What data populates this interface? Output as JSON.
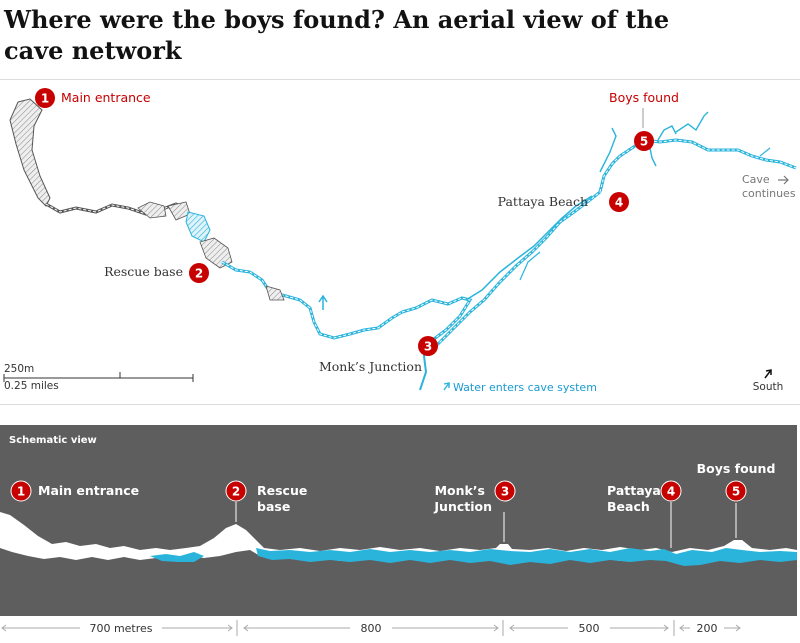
{
  "headline": "Where were the boys found? An aerial view of the cave network",
  "colors": {
    "marker_red": "#c70000",
    "water_blue": "#2ab4dc",
    "cave_grey": "#5e5e5e",
    "panel_dark": "#5e5e5e"
  },
  "aerial": {
    "locations": [
      {
        "num": "1",
        "label": "Main entrance"
      },
      {
        "num": "2",
        "label": "Rescue base"
      },
      {
        "num": "3",
        "label": "Monk’s Junction"
      },
      {
        "num": "4",
        "label": "Pattaya Beach"
      },
      {
        "num": "5",
        "label": "Boys found"
      }
    ],
    "cave_continues": [
      "Cave",
      "continues"
    ],
    "water_enters": "Water enters cave system",
    "scale": {
      "metres": "250m",
      "miles": "0.25 miles"
    },
    "north_arrow_label": "South"
  },
  "schematic": {
    "title": "Schematic view",
    "labels": [
      {
        "num": "1",
        "lines": [
          "Main entrance"
        ]
      },
      {
        "num": "2",
        "lines": [
          "Rescue",
          "base"
        ]
      },
      {
        "num": "3",
        "lines": [
          "Monk’s",
          "Junction"
        ]
      },
      {
        "num": "4",
        "lines": [
          "Pattaya",
          "Beach"
        ]
      },
      {
        "num": "5",
        "lines": [
          "Boys found"
        ]
      }
    ],
    "distances": [
      "700 metres",
      "800",
      "500",
      "200"
    ]
  }
}
